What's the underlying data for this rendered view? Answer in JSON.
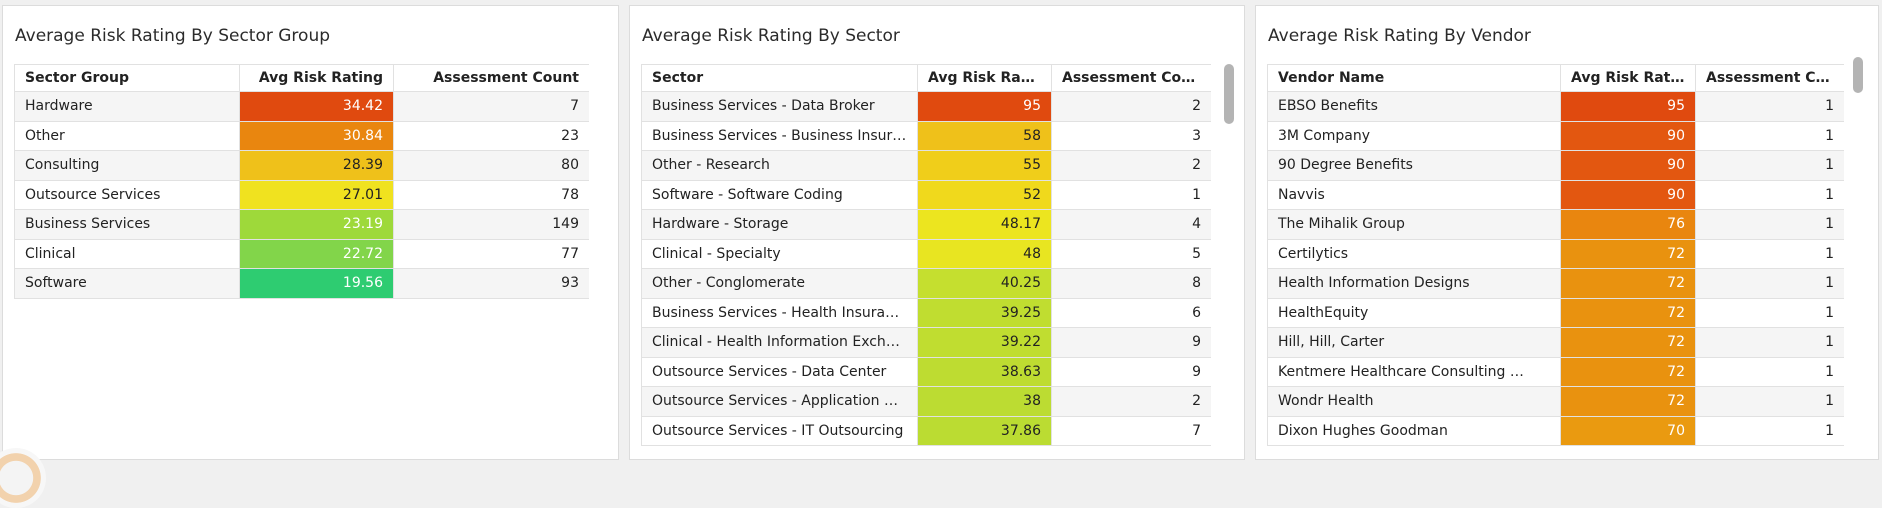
{
  "panels": [
    {
      "title": "Average Risk Rating By Sector Group",
      "columns": [
        "Sector Group",
        "Avg Risk Rating",
        "Assessment Count"
      ],
      "rows": [
        {
          "name": "Hardware",
          "rating": "34.42",
          "count": "7",
          "color": "#e04a0f"
        },
        {
          "name": "Other",
          "rating": "30.84",
          "count": "23",
          "color": "#e9860f"
        },
        {
          "name": "Consulting",
          "rating": "28.39",
          "count": "80",
          "color": "#efc11a"
        },
        {
          "name": "Outsource Services",
          "rating": "27.01",
          "count": "78",
          "color": "#f0e21f"
        },
        {
          "name": "Business Services",
          "rating": "23.19",
          "count": "149",
          "color": "#9ed93a"
        },
        {
          "name": "Clinical",
          "rating": "22.72",
          "count": "77",
          "color": "#82d54a"
        },
        {
          "name": "Software",
          "rating": "19.56",
          "count": "93",
          "color": "#2ecc71"
        }
      ]
    },
    {
      "title": "Average Risk Rating By Sector",
      "columns": [
        "Sector",
        "Avg Risk Rating",
        "Assessment Count"
      ],
      "rows": [
        {
          "name": "Business Services - Data Broker",
          "rating": "95",
          "count": "2",
          "color": "#e04a0f"
        },
        {
          "name": "Business Services - Business Insurance",
          "rating": "58",
          "count": "3",
          "color": "#efc11a"
        },
        {
          "name": "Other - Research",
          "rating": "55",
          "count": "2",
          "color": "#f0ce1a"
        },
        {
          "name": "Software - Software Coding",
          "rating": "52",
          "count": "1",
          "color": "#f0d91c"
        },
        {
          "name": "Hardware - Storage",
          "rating": "48.17",
          "count": "4",
          "color": "#ece51f"
        },
        {
          "name": "Clinical - Specialty",
          "rating": "48",
          "count": "5",
          "color": "#e8e521"
        },
        {
          "name": "Other - Conglomerate",
          "rating": "40.25",
          "count": "8",
          "color": "#c5df2f"
        },
        {
          "name": "Business Services - Health Insurance",
          "rating": "39.25",
          "count": "6",
          "color": "#c0dd30"
        },
        {
          "name": "Clinical - Health Information Exchange",
          "rating": "39.22",
          "count": "9",
          "color": "#c0dd30"
        },
        {
          "name": "Outsource Services - Data Center",
          "rating": "38.63",
          "count": "9",
          "color": "#bedc31"
        },
        {
          "name": "Outsource Services - Application …",
          "rating": "38",
          "count": "2",
          "color": "#bcdc32"
        },
        {
          "name": "Outsource Services - IT Outsourcing",
          "rating": "37.86",
          "count": "7",
          "color": "#bbdc32"
        }
      ]
    },
    {
      "title": "Average Risk Rating By Vendor",
      "columns": [
        "Vendor Name",
        "Avg Risk Rating",
        "Assessment Count"
      ],
      "rows": [
        {
          "name": "EBSO Benefits",
          "rating": "95",
          "count": "1",
          "color": "#e04a0f"
        },
        {
          "name": "3M Company",
          "rating": "90",
          "count": "1",
          "color": "#e35710"
        },
        {
          "name": "90 Degree Benefits",
          "rating": "90",
          "count": "1",
          "color": "#e35710"
        },
        {
          "name": "Navvis",
          "rating": "90",
          "count": "1",
          "color": "#e35710"
        },
        {
          "name": "The Mihalik Group",
          "rating": "76",
          "count": "1",
          "color": "#e9860f"
        },
        {
          "name": "Certilytics",
          "rating": "72",
          "count": "1",
          "color": "#e9920f"
        },
        {
          "name": "Health Information Designs",
          "rating": "72",
          "count": "1",
          "color": "#e9920f"
        },
        {
          "name": "HealthEquity",
          "rating": "72",
          "count": "1",
          "color": "#e9920f"
        },
        {
          "name": "Hill, Hill, Carter",
          "rating": "72",
          "count": "1",
          "color": "#e9920f"
        },
        {
          "name": "Kentmere Healthcare Consulting …",
          "rating": "72",
          "count": "1",
          "color": "#e9920f"
        },
        {
          "name": "Wondr Health",
          "rating": "72",
          "count": "1",
          "color": "#e9920f"
        },
        {
          "name": "Dixon Hughes Goodman",
          "rating": "70",
          "count": "1",
          "color": "#ea9a10"
        }
      ]
    }
  ]
}
